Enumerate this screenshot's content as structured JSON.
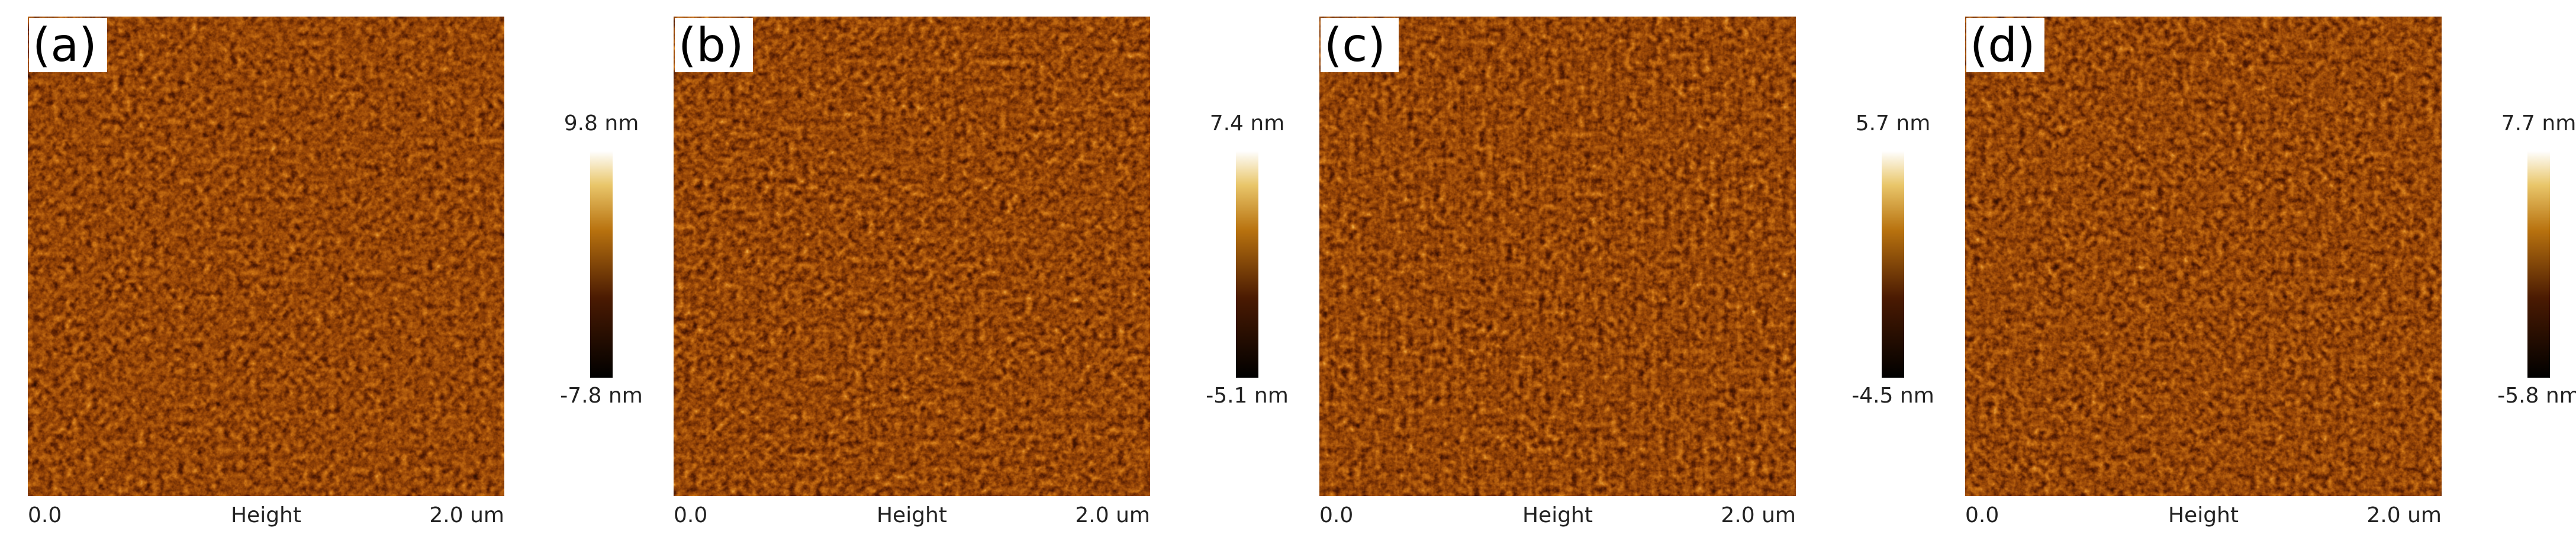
{
  "panels": [
    {
      "label": "(a)",
      "max_label": "9.8 nm",
      "min_label": "-7.8 nm",
      "x_start": "0.0",
      "x_title": "Height",
      "x_end": "2.0 um"
    },
    {
      "label": "(b)",
      "max_label": "7.4 nm",
      "min_label": "-5.1 nm",
      "x_start": "0.0",
      "x_title": "Height",
      "x_end": "2.0 um"
    },
    {
      "label": "(c)",
      "max_label": "5.7 nm",
      "min_label": "-4.5 nm",
      "x_start": "0.0",
      "x_title": "Height",
      "x_end": "2.0 um"
    },
    {
      "label": "(d)",
      "max_label": "7.7 nm",
      "min_label": "-5.8 nm",
      "x_start": "0.0",
      "x_title": "Height",
      "x_end": "2.0 um"
    }
  ]
}
